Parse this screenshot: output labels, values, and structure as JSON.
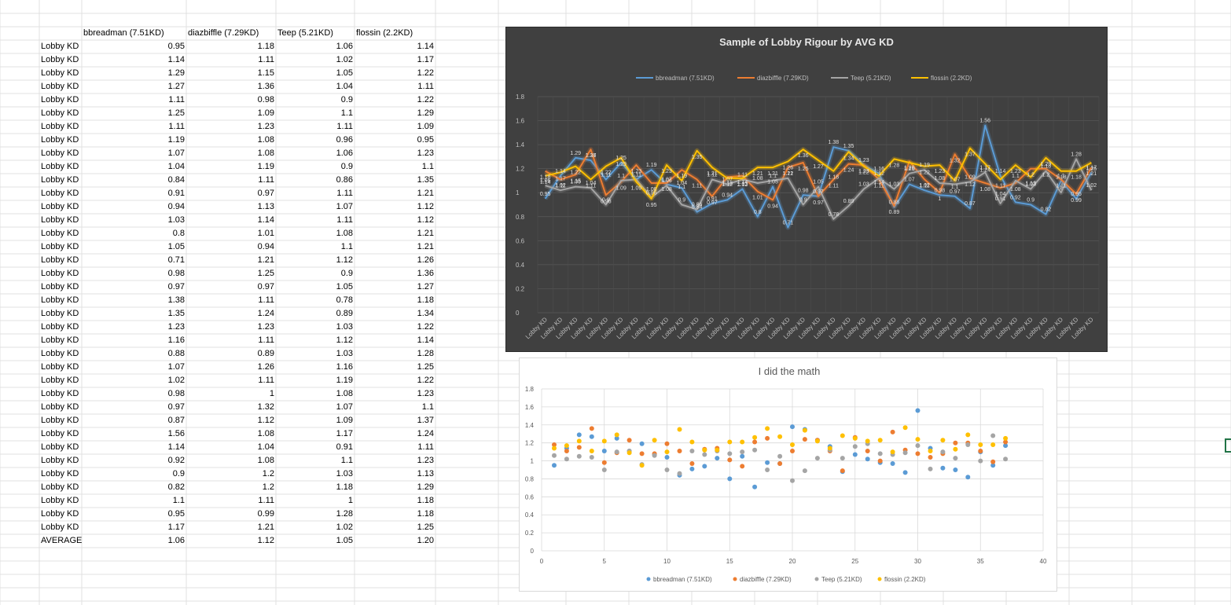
{
  "sheet": {
    "headers": [
      "bbreadman (7.51KD)",
      "diazbiffle (7.29KD)",
      "Teep (5.21KD)",
      "flossin (2.2KD)"
    ],
    "row_label": "Lobby KD",
    "rows": [
      [
        "0.95",
        "1.18",
        "1.06",
        "1.14"
      ],
      [
        "1.14",
        "1.11",
        "1.02",
        "1.17"
      ],
      [
        "1.29",
        "1.15",
        "1.05",
        "1.22"
      ],
      [
        "1.27",
        "1.36",
        "1.04",
        "1.11"
      ],
      [
        "1.11",
        "0.98",
        "0.9",
        "1.22"
      ],
      [
        "1.25",
        "1.09",
        "1.1",
        "1.29"
      ],
      [
        "1.11",
        "1.23",
        "1.11",
        "1.09"
      ],
      [
        "1.19",
        "1.08",
        "0.96",
        "0.95"
      ],
      [
        "1.07",
        "1.08",
        "1.06",
        "1.23"
      ],
      [
        "1.04",
        "1.19",
        "0.9",
        "1.1"
      ],
      [
        "0.84",
        "1.11",
        "0.86",
        "1.35"
      ],
      [
        "0.91",
        "0.97",
        "1.11",
        "1.21"
      ],
      [
        "0.94",
        "1.13",
        "1.07",
        "1.12"
      ],
      [
        "1.03",
        "1.14",
        "1.11",
        "1.12"
      ],
      [
        "0.8",
        "1.01",
        "1.08",
        "1.21"
      ],
      [
        "1.05",
        "0.94",
        "1.1",
        "1.21"
      ],
      [
        "0.71",
        "1.21",
        "1.12",
        "1.26"
      ],
      [
        "0.98",
        "1.25",
        "0.9",
        "1.36"
      ],
      [
        "0.97",
        "0.97",
        "1.05",
        "1.27"
      ],
      [
        "1.38",
        "1.11",
        "0.78",
        "1.18"
      ],
      [
        "1.35",
        "1.24",
        "0.89",
        "1.34"
      ],
      [
        "1.23",
        "1.23",
        "1.03",
        "1.22"
      ],
      [
        "1.16",
        "1.11",
        "1.12",
        "1.14"
      ],
      [
        "0.88",
        "0.89",
        "1.03",
        "1.28"
      ],
      [
        "1.07",
        "1.26",
        "1.16",
        "1.25"
      ],
      [
        "1.02",
        "1.11",
        "1.19",
        "1.22"
      ],
      [
        "0.98",
        "1",
        "1.08",
        "1.23"
      ],
      [
        "0.97",
        "1.32",
        "1.07",
        "1.1"
      ],
      [
        "0.87",
        "1.12",
        "1.09",
        "1.37"
      ],
      [
        "1.56",
        "1.08",
        "1.17",
        "1.24"
      ],
      [
        "1.14",
        "1.04",
        "0.91",
        "1.11"
      ],
      [
        "0.92",
        "1.08",
        "1.1",
        "1.23"
      ],
      [
        "0.9",
        "1.2",
        "1.03",
        "1.13"
      ],
      [
        "0.82",
        "1.2",
        "1.18",
        "1.29"
      ],
      [
        "1.1",
        "1.11",
        "1",
        "1.18"
      ],
      [
        "0.95",
        "0.99",
        "1.28",
        "1.18"
      ],
      [
        "1.17",
        "1.21",
        "1.02",
        "1.25"
      ]
    ],
    "average_label": "AVERAGE",
    "average": [
      "1.06",
      "1.12",
      "1.05",
      "1.20"
    ]
  },
  "chart_data": [
    {
      "type": "line",
      "title": "Sample of Lobby Rigour by AVG KD",
      "xlabel": "",
      "ylabel": "",
      "ylim": [
        0,
        1.8
      ],
      "yticks": [
        "0",
        "0.2",
        "0.4",
        "0.6",
        "0.8",
        "1",
        "1.2",
        "1.4",
        "1.6",
        "1.8"
      ],
      "category_label": "Lobby KD",
      "legend_position": "top",
      "data_labels": true,
      "series": [
        {
          "name": "bbreadman (7.51KD)",
          "color": "#5b9bd5",
          "values": [
            0.95,
            1.14,
            1.29,
            1.27,
            1.11,
            1.25,
            1.11,
            1.19,
            1.07,
            1.04,
            0.84,
            0.91,
            0.94,
            1.03,
            0.8,
            1.05,
            0.71,
            0.98,
            0.97,
            1.38,
            1.35,
            1.23,
            1.16,
            0.88,
            1.07,
            1.02,
            0.98,
            0.97,
            0.87,
            1.56,
            1.14,
            0.92,
            0.9,
            0.82,
            1.1,
            0.95,
            1.17
          ]
        },
        {
          "name": "diazbiffle (7.29KD)",
          "color": "#ed7d31",
          "values": [
            1.18,
            1.11,
            1.15,
            1.36,
            0.98,
            1.09,
            1.23,
            1.08,
            1.08,
            1.19,
            1.11,
            0.97,
            1.13,
            1.14,
            1.01,
            0.94,
            1.21,
            1.25,
            0.97,
            1.11,
            1.24,
            1.23,
            1.11,
            0.89,
            1.26,
            1.11,
            1,
            1.32,
            1.12,
            1.08,
            1.04,
            1.08,
            1.2,
            1.2,
            1.11,
            0.99,
            1.21
          ]
        },
        {
          "name": "Teep (5.21KD)",
          "color": "#a5a5a5",
          "values": [
            1.06,
            1.02,
            1.05,
            1.04,
            0.9,
            1.1,
            1.11,
            0.96,
            1.06,
            0.9,
            0.86,
            1.11,
            1.07,
            1.11,
            1.08,
            1.1,
            1.12,
            0.9,
            1.05,
            0.78,
            0.89,
            1.03,
            1.12,
            1.03,
            1.16,
            1.19,
            1.08,
            1.07,
            1.09,
            1.17,
            0.91,
            1.1,
            1.03,
            1.18,
            1,
            1.28,
            1.02
          ]
        },
        {
          "name": "flossin (2.2KD)",
          "color": "#ffc000",
          "values": [
            1.14,
            1.17,
            1.22,
            1.11,
            1.22,
            1.29,
            1.09,
            0.95,
            1.23,
            1.1,
            1.35,
            1.21,
            1.12,
            1.12,
            1.21,
            1.21,
            1.26,
            1.36,
            1.27,
            1.18,
            1.34,
            1.22,
            1.14,
            1.28,
            1.25,
            1.22,
            1.23,
            1.1,
            1.37,
            1.24,
            1.11,
            1.23,
            1.13,
            1.29,
            1.18,
            1.18,
            1.25
          ]
        }
      ]
    },
    {
      "type": "scatter",
      "title": "I did the math",
      "xlabel": "",
      "ylabel": "",
      "xlim": [
        0,
        40
      ],
      "ylim": [
        0,
        1.8
      ],
      "xticks": [
        "0",
        "5",
        "10",
        "15",
        "20",
        "25",
        "30",
        "35",
        "40"
      ],
      "yticks": [
        "0",
        "0.2",
        "0.4",
        "0.6",
        "0.8",
        "1",
        "1.2",
        "1.4",
        "1.6",
        "1.8"
      ],
      "legend_position": "bottom",
      "series_ref": "uses the same four series as chart 1, plotted at x = 1..37"
    }
  ]
}
